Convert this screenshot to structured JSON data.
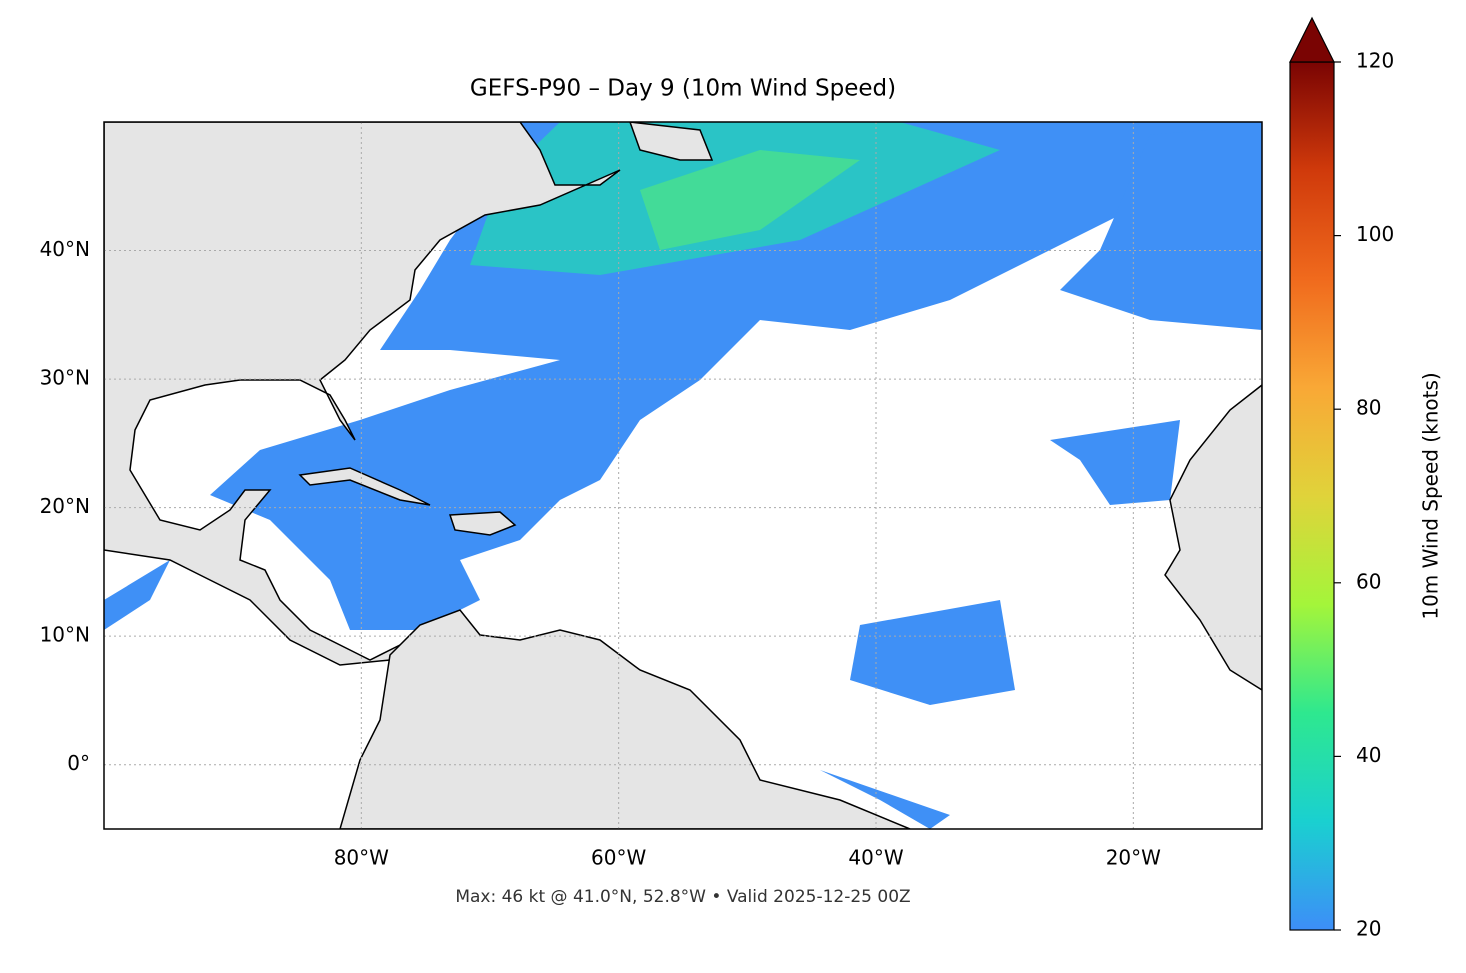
{
  "chart_data": {
    "type": "map",
    "title": "GEFS-P90 – Day 9 (10m Wind Speed)",
    "xlim": [
      -100,
      -10
    ],
    "ylim": [
      -5,
      50
    ],
    "xticks": [
      {
        "value": -80,
        "label": "80°W"
      },
      {
        "value": -60,
        "label": "60°W"
      },
      {
        "value": -40,
        "label": "40°W"
      },
      {
        "value": -20,
        "label": "20°W"
      }
    ],
    "yticks": [
      {
        "value": 0,
        "label": "0°"
      },
      {
        "value": 10,
        "label": "10°N"
      },
      {
        "value": 20,
        "label": "20°N"
      },
      {
        "value": 30,
        "label": "30°N"
      },
      {
        "value": 40,
        "label": "40°N"
      }
    ],
    "grid": true,
    "colorbar": {
      "label": "10m Wind Speed (knots)",
      "lim": [
        20,
        120
      ],
      "ticks": [
        20,
        40,
        60,
        80,
        100,
        120
      ],
      "colors": [
        "#3d8ef8",
        "#1ad0d0",
        "#2ee88f",
        "#a4f53a",
        "#e0d33a",
        "#f9a836",
        "#f06a1d",
        "#d03a0b",
        "#7a0403"
      ],
      "extend": "max"
    },
    "annotation": "Max: 46 kt @ 41.0°N, 52.8°W • Valid 2025-12-25 00Z"
  }
}
